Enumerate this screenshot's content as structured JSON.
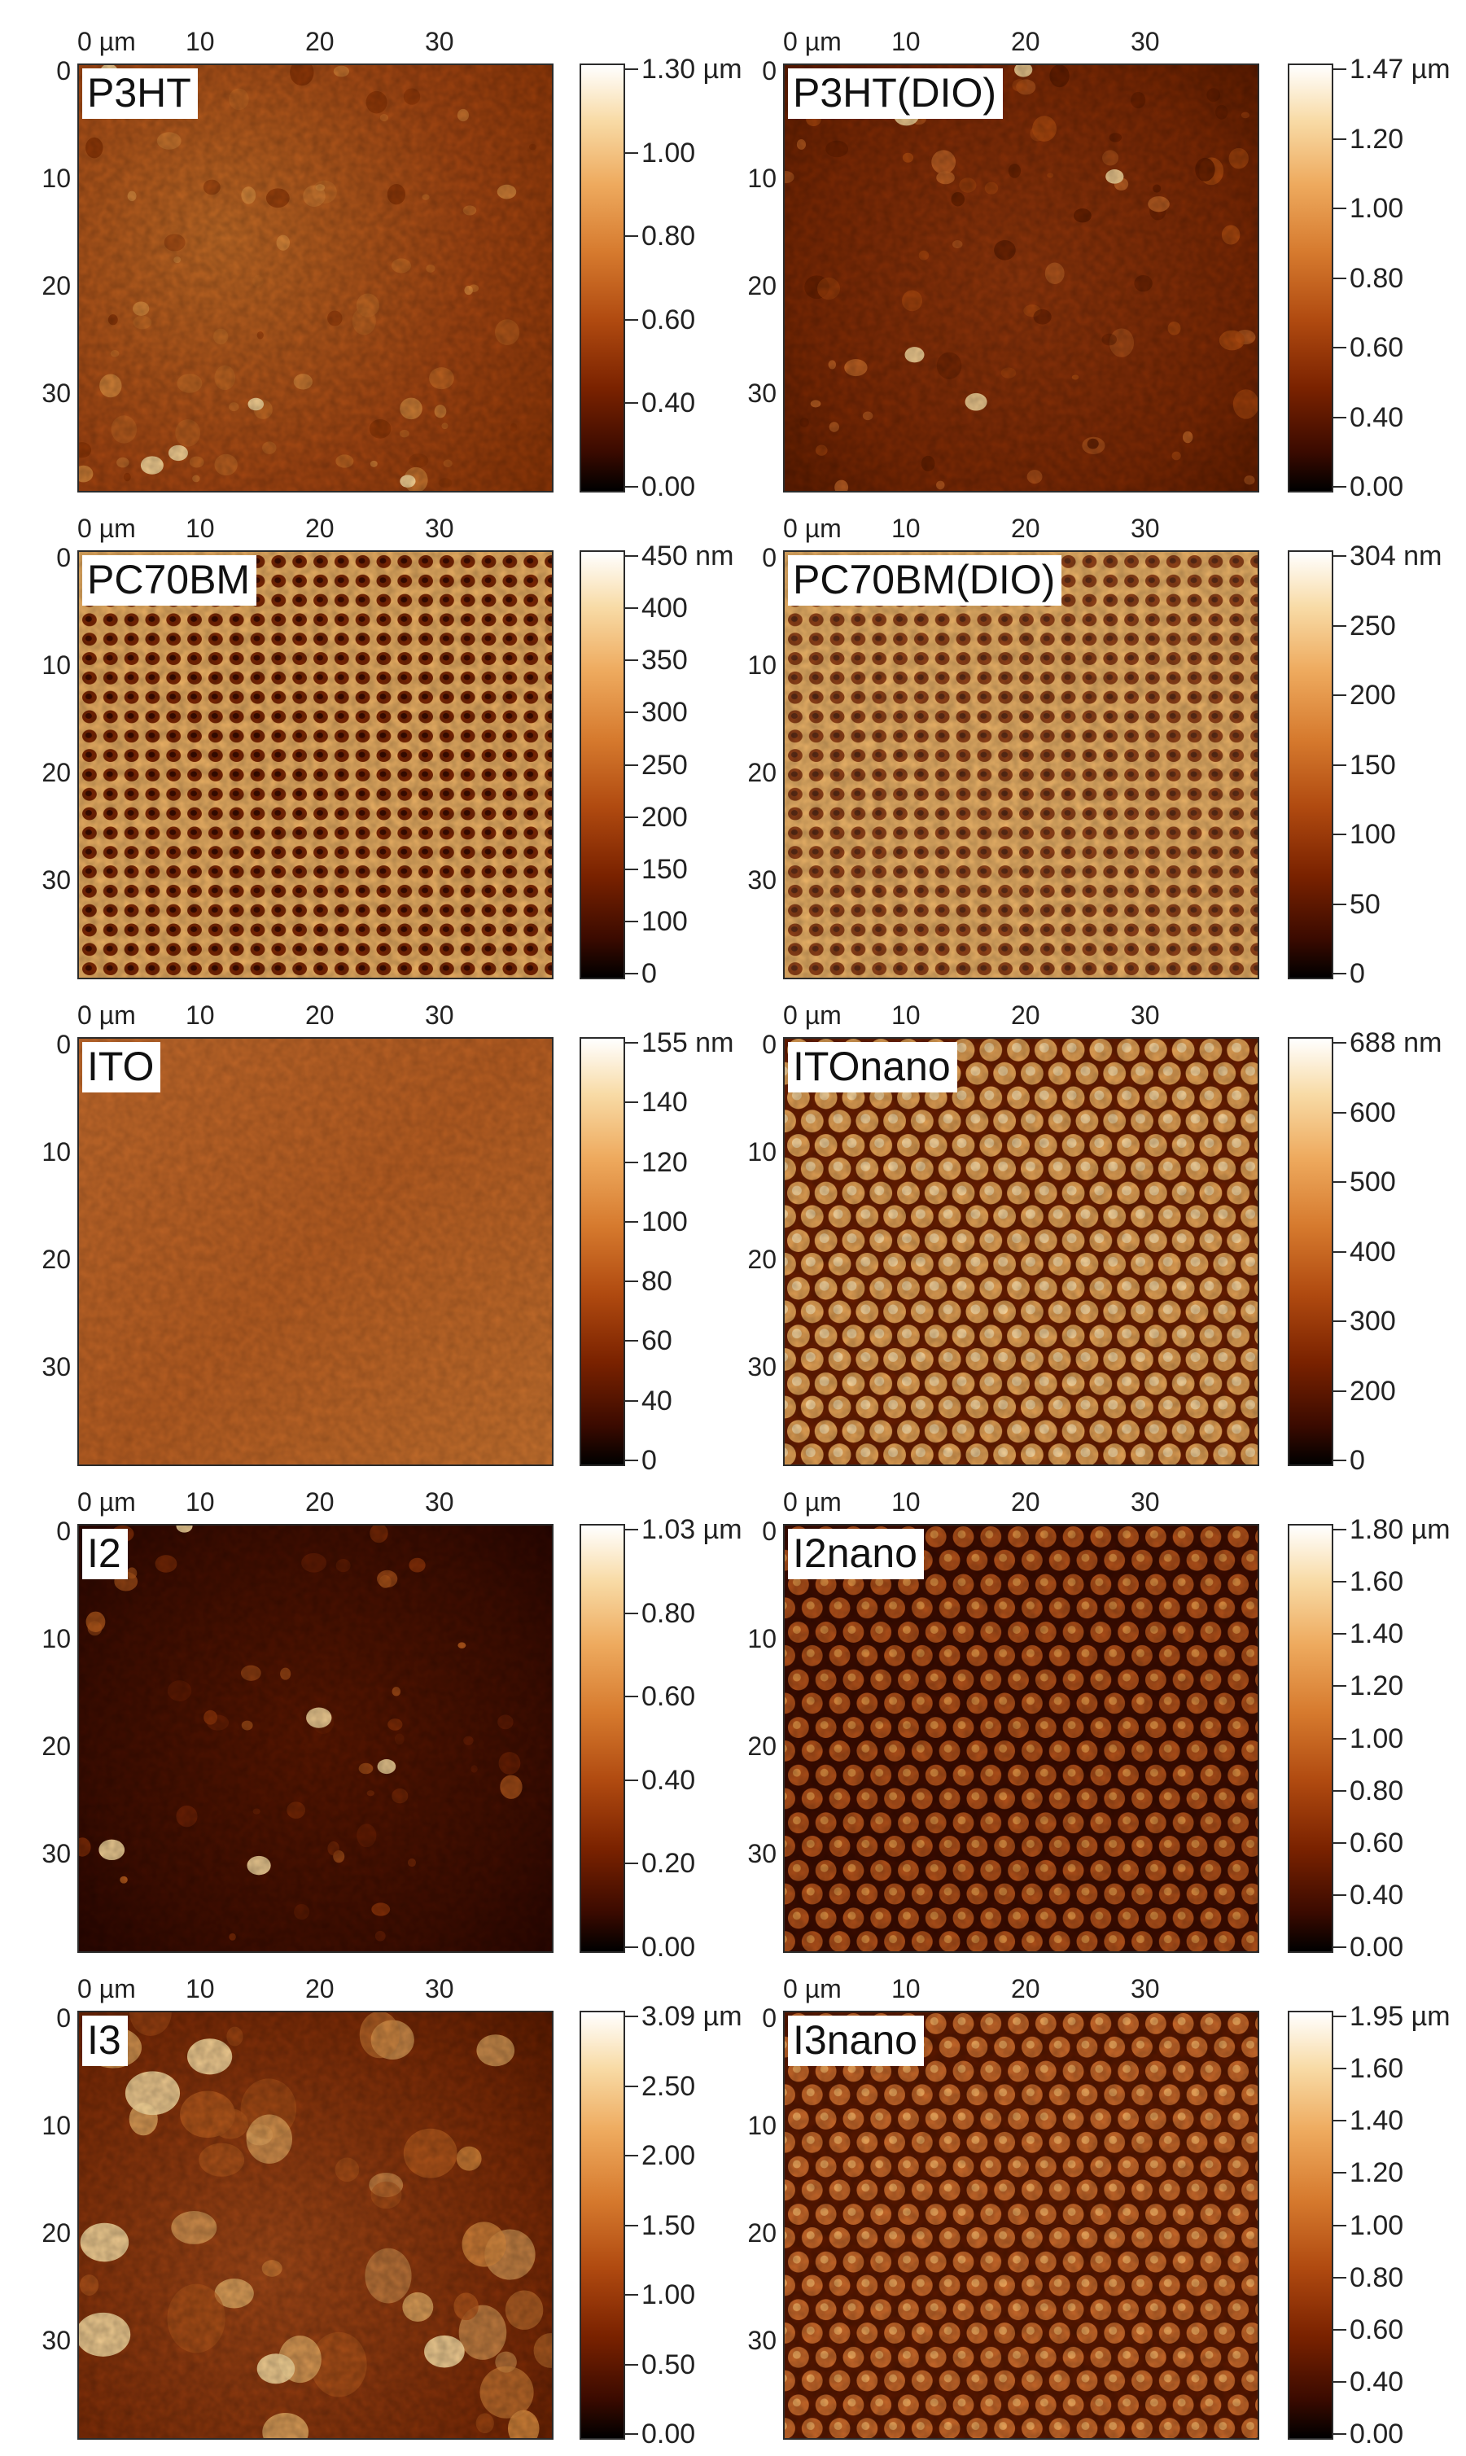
{
  "x_ticks": [
    "0 µm",
    "10",
    "20",
    "30"
  ],
  "y_ticks": [
    "0",
    "10",
    "20",
    "30"
  ],
  "panels": [
    {
      "label": "P3HT",
      "colorbar": [
        "1.30 µm",
        "1.00",
        "0.80",
        "0.60",
        "0.40",
        "0.00"
      ]
    },
    {
      "label": "P3HT(DIO)",
      "colorbar": [
        "1.47 µm",
        "1.20",
        "1.00",
        "0.80",
        "0.60",
        "0.40",
        "0.00"
      ]
    },
    {
      "label": "PC70BM",
      "colorbar": [
        "450 nm",
        "400",
        "350",
        "300",
        "250",
        "200",
        "150",
        "100",
        "0"
      ]
    },
    {
      "label": "PC70BM(DIO)",
      "colorbar": [
        "304 nm",
        "250",
        "200",
        "150",
        "100",
        "50",
        "0"
      ]
    },
    {
      "label": "ITO",
      "colorbar": [
        "155 nm",
        "140",
        "120",
        "100",
        "80",
        "60",
        "40",
        "0"
      ]
    },
    {
      "label": "ITOnano",
      "colorbar": [
        "688 nm",
        "600",
        "500",
        "400",
        "300",
        "200",
        "0"
      ]
    },
    {
      "label": "I2",
      "colorbar": [
        "1.03 µm",
        "0.80",
        "0.60",
        "0.40",
        "0.20",
        "0.00"
      ]
    },
    {
      "label": "I2nano",
      "colorbar": [
        "1.80 µm",
        "1.60",
        "1.40",
        "1.20",
        "1.00",
        "0.80",
        "0.60",
        "0.40",
        "0.00"
      ]
    },
    {
      "label": "I3",
      "colorbar": [
        "3.09 µm",
        "2.50",
        "2.00",
        "1.50",
        "1.00",
        "0.50",
        "0.00"
      ]
    },
    {
      "label": "I3nano",
      "colorbar": [
        "1.95 µm",
        "1.60",
        "1.40",
        "1.20",
        "1.00",
        "0.80",
        "0.60",
        "0.40",
        "0.00"
      ]
    }
  ],
  "colors": {
    "scale": [
      "#000000",
      "#3a0a00",
      "#7a2200",
      "#b04a10",
      "#d67a2e",
      "#eeaa5e",
      "#f8dba6",
      "#ffffff"
    ]
  }
}
